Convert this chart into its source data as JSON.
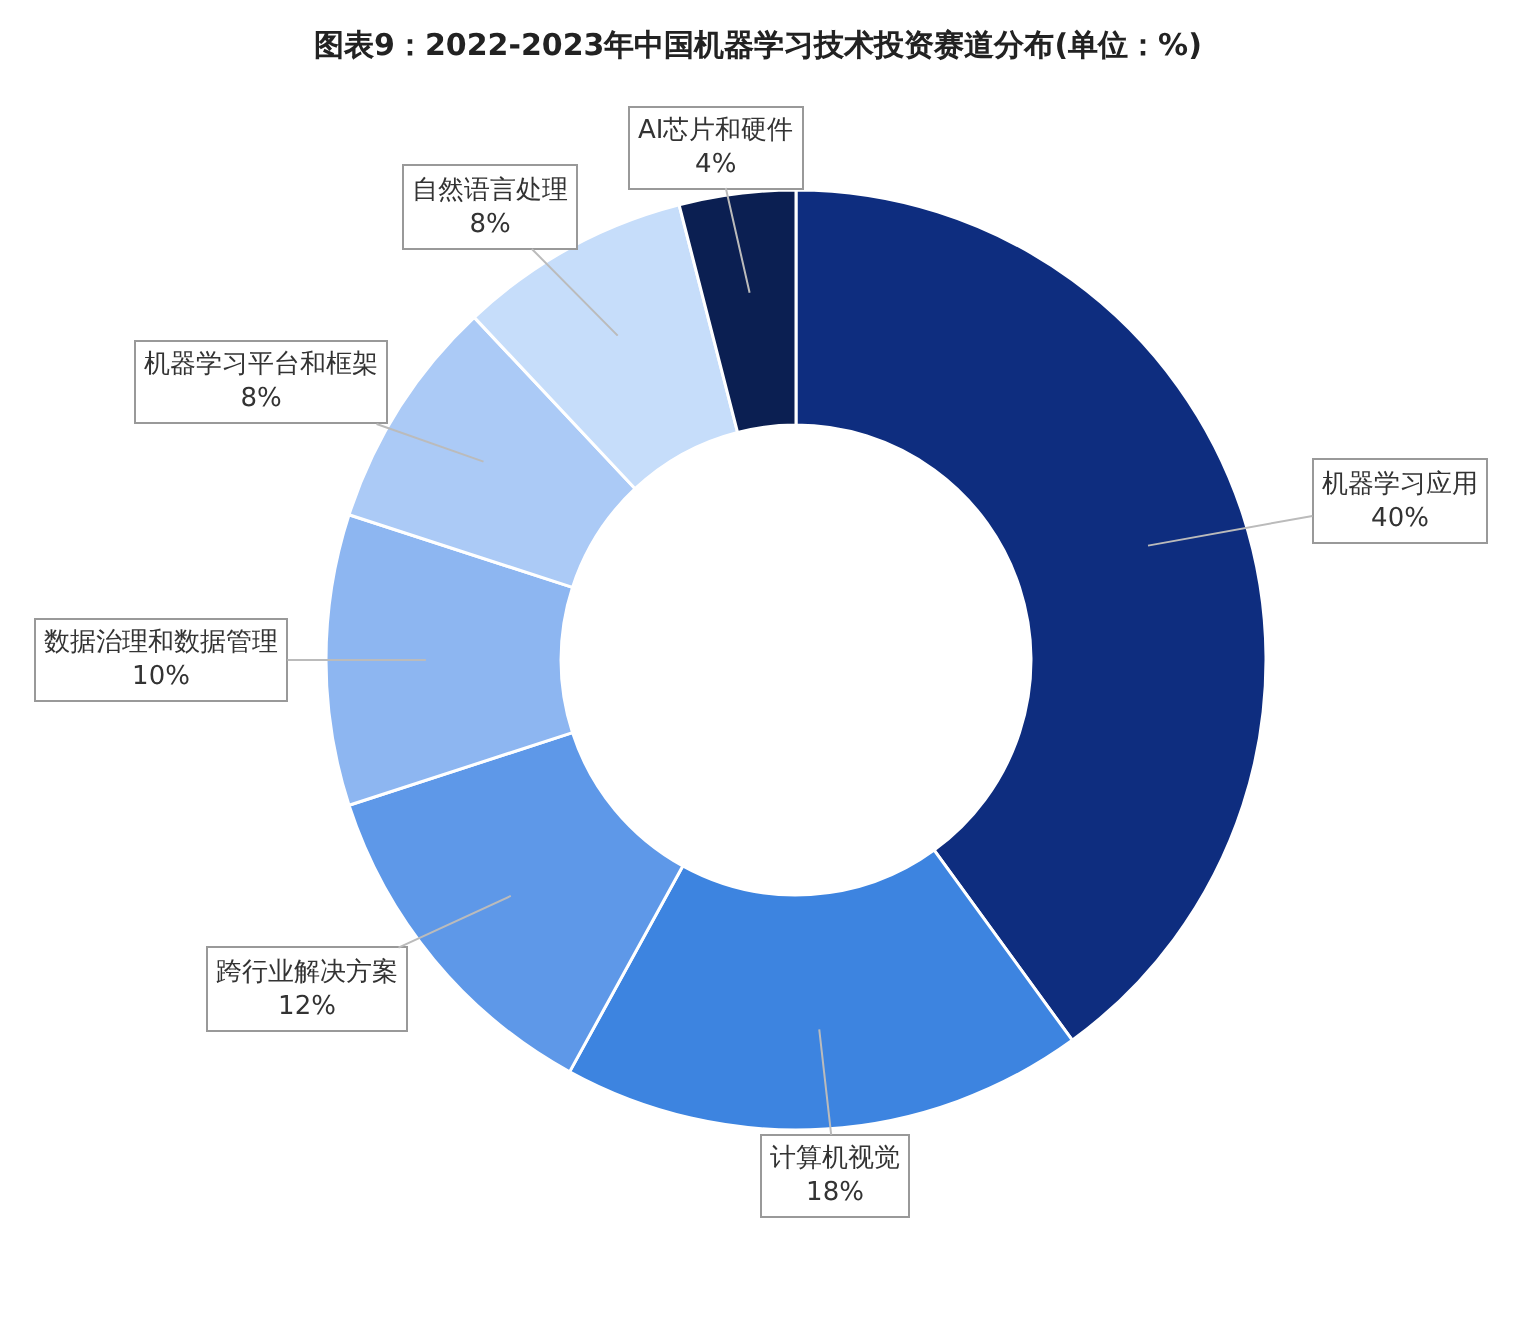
{
  "chart_data": {
    "type": "donut",
    "title": "图表9：2022-2023年中国机器学习技术投资赛道分布(单位：%)",
    "categories": [
      "机器学习应用",
      "计算机视觉",
      "跨行业解决方案",
      "数据治理和数据管理",
      "机器学习平台和框架",
      "自然语言处理",
      "AI芯片和硬件"
    ],
    "values": [
      40,
      18,
      12,
      10,
      8,
      8,
      4
    ],
    "value_labels": [
      "40%",
      "18%",
      "12%",
      "10%",
      "8%",
      "8%",
      "4%"
    ],
    "colors": [
      "#0e2d7f",
      "#3d84e0",
      "#5e98e8",
      "#8db6f1",
      "#abcaf6",
      "#c6ddfa",
      "#0b1f52"
    ],
    "legend": false
  }
}
